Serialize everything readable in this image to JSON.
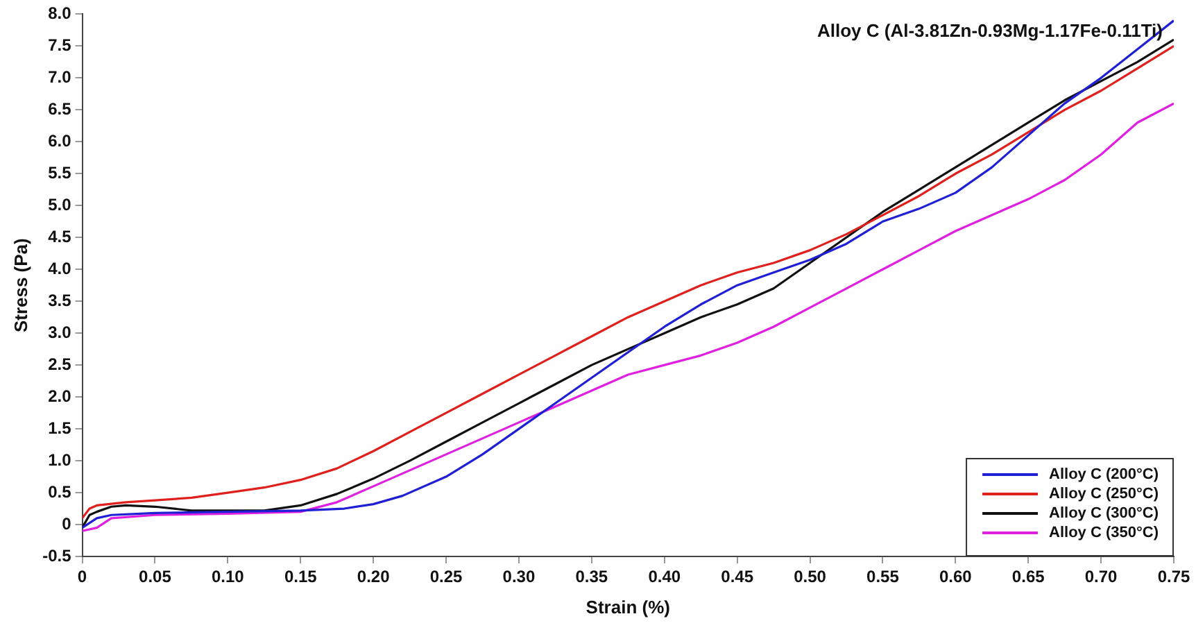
{
  "chart_data": {
    "type": "line",
    "xlabel": "Strain (%)",
    "ylabel": "Stress (Pa)",
    "annotations": [
      "Alloy C (Al-3.81Zn-0.93Mg-1.17Fe-0.11Ti)"
    ],
    "xlim": [
      0,
      0.75
    ],
    "ylim": [
      -0.5,
      8.0
    ],
    "xticks": [
      0,
      {
        "value": 0.05,
        "label": "0.05"
      },
      {
        "value": 0.1,
        "label": "0.10"
      },
      {
        "value": 0.15,
        "label": "0.15"
      },
      {
        "value": 0.2,
        "label": "0.20"
      },
      {
        "value": 0.25,
        "label": "0.25"
      },
      {
        "value": 0.3,
        "label": "0.30"
      },
      {
        "value": 0.35,
        "label": "0.35"
      },
      {
        "value": 0.4,
        "label": "0.40"
      },
      {
        "value": 0.45,
        "label": "0.45"
      },
      {
        "value": 0.5,
        "label": "0.50"
      },
      {
        "value": 0.55,
        "label": "0.55"
      },
      {
        "value": 0.6,
        "label": "0.60"
      },
      {
        "value": 0.65,
        "label": "0.65"
      },
      {
        "value": 0.7,
        "label": "0.70"
      },
      {
        "value": 0.75,
        "label": "0.75"
      }
    ],
    "yticks": [
      -0.5,
      0,
      {
        "value": 0.5,
        "label": "0.5"
      },
      {
        "value": 1,
        "label": "1.0"
      },
      {
        "value": 1.5,
        "label": "1.5"
      },
      {
        "value": 2,
        "label": "2.0"
      },
      {
        "value": 2.5,
        "label": "2.5"
      },
      {
        "value": 3,
        "label": "3.0"
      },
      {
        "value": 3.5,
        "label": "3.5"
      },
      {
        "value": 4,
        "label": "4.0"
      },
      {
        "value": 4.5,
        "label": "4.5"
      },
      {
        "value": 5,
        "label": "5.0"
      },
      {
        "value": 5.5,
        "label": "5.5"
      },
      {
        "value": 6,
        "label": "6.0"
      },
      {
        "value": 6.5,
        "label": "6.5"
      },
      {
        "value": 7,
        "label": "7.0"
      },
      {
        "value": 7.5,
        "label": "7.5"
      },
      {
        "value": 8,
        "label": "8.0"
      }
    ],
    "grid": false,
    "legend": "bottom right",
    "marker": "none",
    "line_style": "solid",
    "series": [
      {
        "name": "Alloy C (200°C)",
        "color": "#1f1fd6",
        "x": [
          0,
          0.01,
          0.02,
          0.05,
          0.1,
          0.15,
          0.18,
          0.2,
          0.22,
          0.25,
          0.275,
          0.3,
          0.325,
          0.35,
          0.375,
          0.4,
          0.425,
          0.45,
          0.475,
          0.5,
          0.525,
          0.55,
          0.575,
          0.6,
          0.625,
          0.65,
          0.675,
          0.7,
          0.725,
          0.75
        ],
        "values": [
          -0.05,
          0.1,
          0.15,
          0.18,
          0.2,
          0.22,
          0.25,
          0.32,
          0.45,
          0.75,
          1.1,
          1.5,
          1.9,
          2.3,
          2.7,
          3.1,
          3.45,
          3.75,
          3.95,
          4.15,
          4.4,
          4.75,
          4.95,
          5.2,
          5.6,
          6.1,
          6.6,
          7.0,
          7.45,
          7.9
        ]
      },
      {
        "name": "Alloy C (250°C)",
        "color": "#e0201c",
        "x": [
          0,
          0.005,
          0.01,
          0.03,
          0.05,
          0.075,
          0.1,
          0.125,
          0.15,
          0.175,
          0.2,
          0.225,
          0.25,
          0.275,
          0.3,
          0.325,
          0.35,
          0.375,
          0.4,
          0.425,
          0.45,
          0.475,
          0.5,
          0.525,
          0.55,
          0.575,
          0.6,
          0.625,
          0.65,
          0.675,
          0.7,
          0.725,
          0.75
        ],
        "values": [
          0.1,
          0.25,
          0.3,
          0.35,
          0.38,
          0.42,
          0.5,
          0.58,
          0.7,
          0.88,
          1.15,
          1.45,
          1.75,
          2.05,
          2.35,
          2.65,
          2.95,
          3.25,
          3.5,
          3.75,
          3.95,
          4.1,
          4.3,
          4.55,
          4.85,
          5.15,
          5.5,
          5.8,
          6.15,
          6.5,
          6.8,
          7.15,
          7.5
        ]
      },
      {
        "name": "Alloy C (300°C)",
        "color": "#111111",
        "x": [
          0,
          0.005,
          0.01,
          0.02,
          0.03,
          0.05,
          0.075,
          0.1,
          0.125,
          0.15,
          0.175,
          0.2,
          0.225,
          0.25,
          0.275,
          0.3,
          0.325,
          0.35,
          0.375,
          0.4,
          0.425,
          0.45,
          0.475,
          0.5,
          0.525,
          0.55,
          0.575,
          0.6,
          0.625,
          0.65,
          0.675,
          0.7,
          0.725,
          0.75
        ],
        "values": [
          -0.05,
          0.15,
          0.2,
          0.28,
          0.3,
          0.28,
          0.22,
          0.22,
          0.22,
          0.3,
          0.48,
          0.72,
          1.0,
          1.3,
          1.6,
          1.9,
          2.2,
          2.5,
          2.75,
          3.0,
          3.25,
          3.45,
          3.7,
          4.1,
          4.5,
          4.9,
          5.25,
          5.6,
          5.95,
          6.3,
          6.65,
          6.95,
          7.25,
          7.6
        ]
      },
      {
        "name": "Alloy C (350°C)",
        "color": "#e020e0",
        "x": [
          0,
          0.01,
          0.02,
          0.05,
          0.1,
          0.15,
          0.175,
          0.2,
          0.225,
          0.25,
          0.275,
          0.3,
          0.325,
          0.35,
          0.375,
          0.4,
          0.425,
          0.45,
          0.475,
          0.5,
          0.525,
          0.55,
          0.575,
          0.6,
          0.625,
          0.65,
          0.675,
          0.7,
          0.725,
          0.75
        ],
        "values": [
          -0.1,
          -0.05,
          0.1,
          0.15,
          0.17,
          0.2,
          0.35,
          0.6,
          0.85,
          1.1,
          1.35,
          1.6,
          1.85,
          2.1,
          2.35,
          2.5,
          2.65,
          2.85,
          3.1,
          3.4,
          3.7,
          4.0,
          4.3,
          4.6,
          4.85,
          5.1,
          5.4,
          5.8,
          6.3,
          6.6
        ]
      }
    ]
  }
}
